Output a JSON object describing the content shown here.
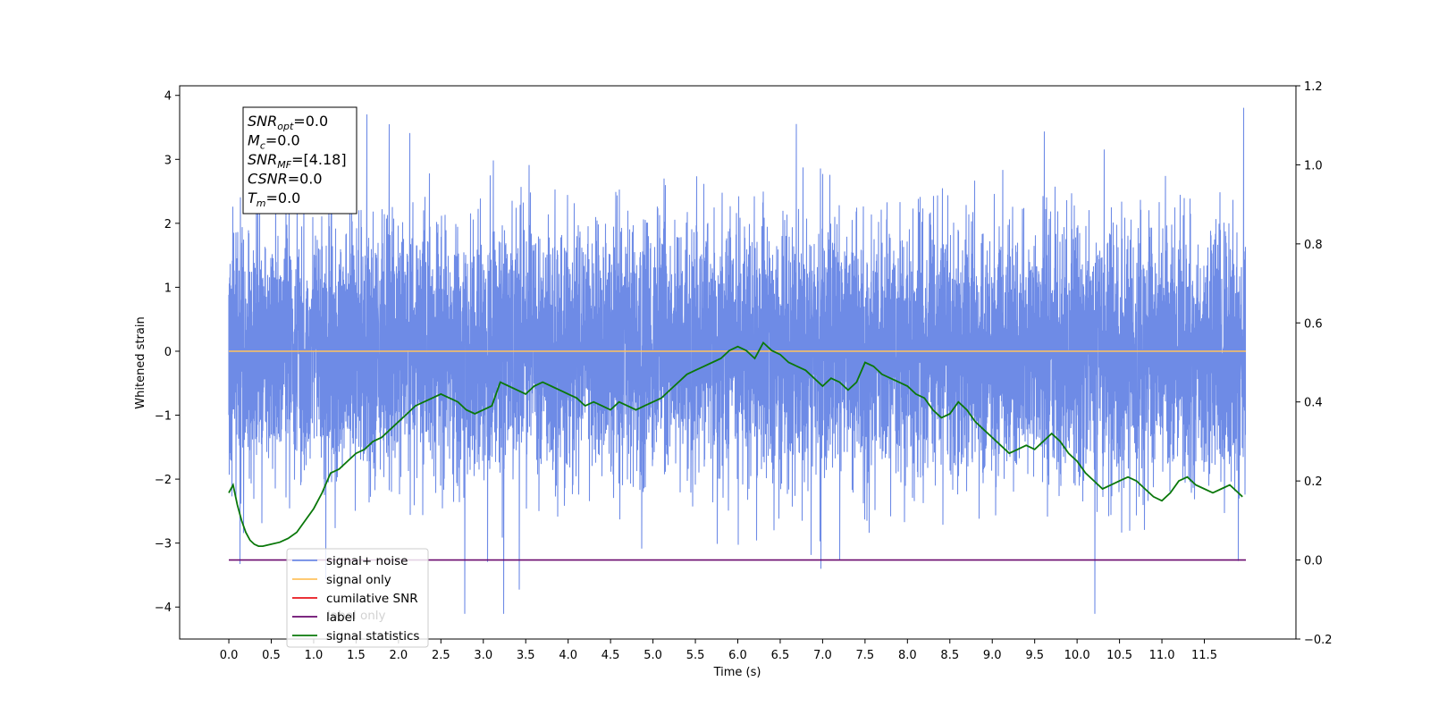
{
  "chart_data": {
    "type": "line",
    "xlabel": "Time (s)",
    "ylabel": "Whitened strain",
    "x_range": [
      -0.58,
      12.58
    ],
    "y_left_range": [
      -4.5,
      4.15
    ],
    "y_right_range": [
      -0.2,
      1.2
    ],
    "x_ticks": [
      "0.0",
      "0.5",
      "1.0",
      "1.5",
      "2.0",
      "2.5",
      "3.0",
      "3.5",
      "4.0",
      "4.5",
      "5.0",
      "5.5",
      "6.0",
      "6.5",
      "7.0",
      "7.5",
      "8.0",
      "8.5",
      "9.0",
      "9.5",
      "10.0",
      "10.5",
      "11.0",
      "11.5"
    ],
    "y_left_ticks": [
      "4",
      "3",
      "2",
      "1",
      "0",
      "−1",
      "−2",
      "−3",
      "−4"
    ],
    "y_right_ticks": [
      "1.2",
      "1.0",
      "0.8",
      "0.6",
      "0.4",
      "0.2",
      "0.0",
      "−0.2"
    ],
    "annotation": [
      {
        "base": "SNR",
        "sub": "opt",
        "value": "=0.0"
      },
      {
        "base": "M",
        "sub": "c",
        "value": "=0.0"
      },
      {
        "base": "SNR",
        "sub": "MF",
        "value": "=[4.18]"
      },
      {
        "base": "CSNR",
        "sub": "",
        "value": "=0.0"
      },
      {
        "base": "T",
        "sub": "m",
        "value": "=0.0"
      }
    ],
    "legend": {
      "placement": "lower-left",
      "entries": [
        {
          "label": "signal+ noise",
          "color": "#6e8be6"
        },
        {
          "label": "signal only",
          "color": "#ffc25e"
        },
        {
          "label": "cumilative SNR",
          "color": "#e8141c"
        },
        {
          "label": "label",
          "color": "#6a0a6e"
        },
        {
          "label": "signal statistics",
          "color": "#0a780a"
        }
      ],
      "obscured_labels": [
        "label only"
      ]
    },
    "series": [
      {
        "name": "signal+ noise",
        "axis": "left",
        "color": "#6e8be6",
        "kind": "noise",
        "x_start": 0.0,
        "x_end": 11.99,
        "sigma": 0.95
      },
      {
        "name": "signal only",
        "axis": "left",
        "color": "#ffc25e",
        "x": [
          0.0,
          11.99
        ],
        "y": [
          0,
          0
        ]
      },
      {
        "name": "label",
        "axis": "right",
        "color": "#6a0a6e",
        "x": [
          0.0,
          11.99
        ],
        "y": [
          0,
          0
        ]
      },
      {
        "name": "signal statistics",
        "axis": "right",
        "color": "#0a780a",
        "x": [
          0.0,
          0.05,
          0.1,
          0.15,
          0.2,
          0.25,
          0.3,
          0.35,
          0.4,
          0.5,
          0.6,
          0.7,
          0.8,
          0.9,
          1.0,
          1.1,
          1.2,
          1.3,
          1.4,
          1.5,
          1.6,
          1.7,
          1.8,
          1.9,
          2.0,
          2.1,
          2.2,
          2.3,
          2.4,
          2.5,
          2.6,
          2.7,
          2.8,
          2.9,
          3.0,
          3.1,
          3.2,
          3.3,
          3.4,
          3.5,
          3.6,
          3.7,
          3.8,
          3.9,
          4.0,
          4.1,
          4.2,
          4.3,
          4.4,
          4.5,
          4.6,
          4.7,
          4.8,
          4.9,
          5.0,
          5.1,
          5.2,
          5.3,
          5.4,
          5.5,
          5.6,
          5.7,
          5.8,
          5.9,
          6.0,
          6.1,
          6.2,
          6.3,
          6.4,
          6.5,
          6.6,
          6.7,
          6.8,
          6.9,
          7.0,
          7.1,
          7.2,
          7.3,
          7.4,
          7.5,
          7.6,
          7.7,
          7.8,
          7.9,
          8.0,
          8.1,
          8.2,
          8.3,
          8.4,
          8.5,
          8.6,
          8.7,
          8.8,
          8.9,
          9.0,
          9.1,
          9.2,
          9.3,
          9.4,
          9.5,
          9.6,
          9.7,
          9.8,
          9.9,
          10.0,
          10.1,
          10.2,
          10.3,
          10.4,
          10.5,
          10.6,
          10.7,
          10.8,
          10.9,
          11.0,
          11.1,
          11.2,
          11.3,
          11.4,
          11.5,
          11.6,
          11.7,
          11.8,
          11.9,
          11.95
        ],
        "y": [
          0.17,
          0.19,
          0.14,
          0.1,
          0.07,
          0.05,
          0.04,
          0.035,
          0.035,
          0.04,
          0.045,
          0.055,
          0.07,
          0.1,
          0.13,
          0.17,
          0.22,
          0.23,
          0.25,
          0.27,
          0.28,
          0.3,
          0.31,
          0.33,
          0.35,
          0.37,
          0.39,
          0.4,
          0.41,
          0.42,
          0.41,
          0.4,
          0.38,
          0.37,
          0.38,
          0.39,
          0.45,
          0.44,
          0.43,
          0.42,
          0.44,
          0.45,
          0.44,
          0.43,
          0.42,
          0.41,
          0.39,
          0.4,
          0.39,
          0.38,
          0.4,
          0.39,
          0.38,
          0.39,
          0.4,
          0.41,
          0.43,
          0.45,
          0.47,
          0.48,
          0.49,
          0.5,
          0.51,
          0.53,
          0.54,
          0.53,
          0.51,
          0.55,
          0.53,
          0.52,
          0.5,
          0.49,
          0.48,
          0.46,
          0.44,
          0.46,
          0.45,
          0.43,
          0.45,
          0.5,
          0.49,
          0.47,
          0.46,
          0.45,
          0.44,
          0.42,
          0.41,
          0.38,
          0.36,
          0.37,
          0.4,
          0.38,
          0.35,
          0.33,
          0.31,
          0.29,
          0.27,
          0.28,
          0.29,
          0.28,
          0.3,
          0.32,
          0.3,
          0.27,
          0.25,
          0.22,
          0.2,
          0.18,
          0.19,
          0.2,
          0.21,
          0.2,
          0.18,
          0.16,
          0.15,
          0.17,
          0.2,
          0.21,
          0.19,
          0.18,
          0.17,
          0.18,
          0.19,
          0.17,
          0.16
        ]
      }
    ]
  }
}
